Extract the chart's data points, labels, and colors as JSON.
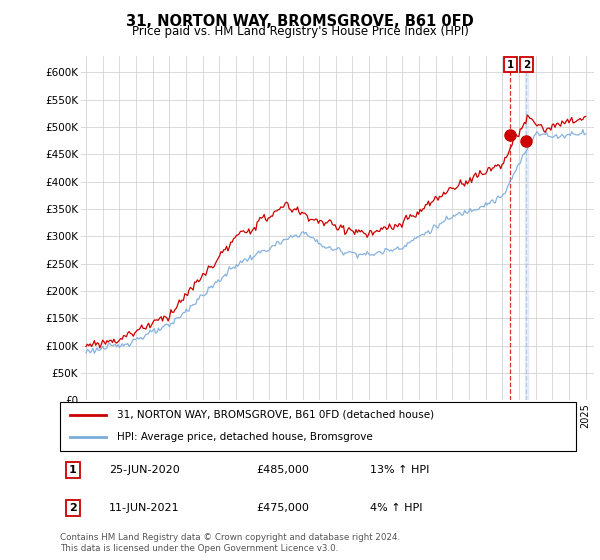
{
  "title": "31, NORTON WAY, BROMSGROVE, B61 0FD",
  "subtitle": "Price paid vs. HM Land Registry's House Price Index (HPI)",
  "ylabel_ticks": [
    "£0",
    "£50K",
    "£100K",
    "£150K",
    "£200K",
    "£250K",
    "£300K",
    "£350K",
    "£400K",
    "£450K",
    "£500K",
    "£550K",
    "£600K"
  ],
  "ylim": [
    0,
    630000
  ],
  "yticks": [
    0,
    50000,
    100000,
    150000,
    200000,
    250000,
    300000,
    350000,
    400000,
    450000,
    500000,
    550000,
    600000
  ],
  "legend_line1": "31, NORTON WAY, BROMSGROVE, B61 0FD (detached house)",
  "legend_line2": "HPI: Average price, detached house, Bromsgrove",
  "line1_color": "#cc0000",
  "line2_color": "#7aabdb",
  "annotation_box_color": "#cc0000",
  "transaction1_label": "1",
  "transaction1_date": "25-JUN-2020",
  "transaction1_price": "£485,000",
  "transaction1_hpi": "13% ↑ HPI",
  "transaction2_label": "2",
  "transaction2_date": "11-JUN-2021",
  "transaction2_price": "£475,000",
  "transaction2_hpi": "4% ↑ HPI",
  "transaction1_x": 2020.48,
  "transaction1_y": 485000,
  "transaction2_x": 2021.44,
  "transaction2_y": 475000,
  "footer": "Contains HM Land Registry data © Crown copyright and database right 2024.\nThis data is licensed under the Open Government Licence v3.0.",
  "background_color": "#ffffff",
  "grid_color": "#cccccc",
  "xlim_left": 1994.7,
  "xlim_right": 2025.5
}
